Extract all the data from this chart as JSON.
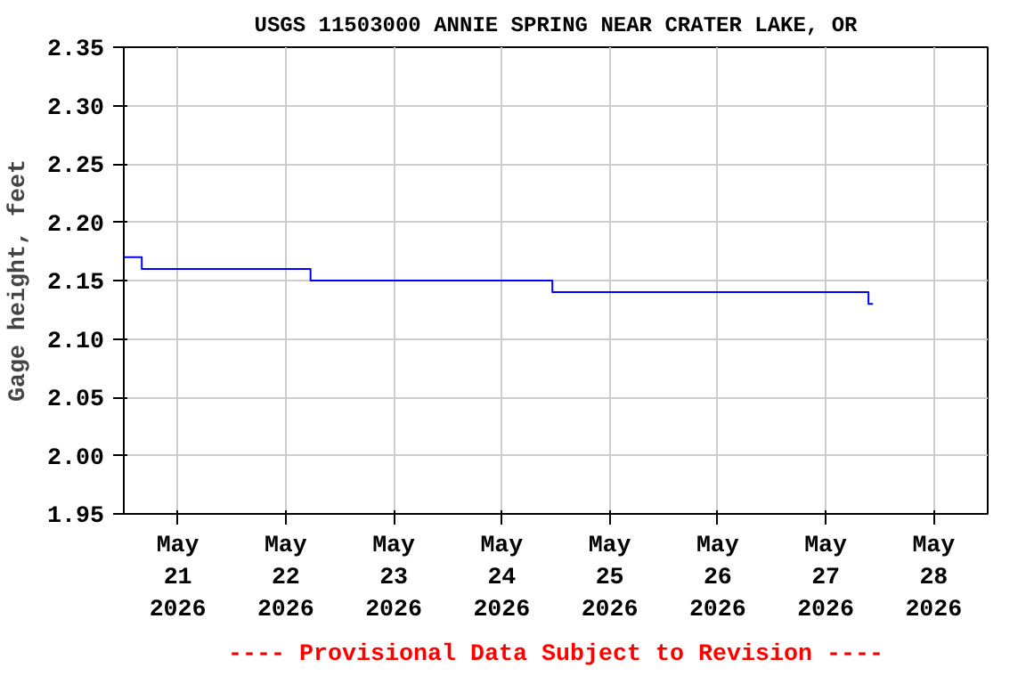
{
  "chart_data": {
    "type": "step",
    "title": "USGS 11503000 ANNIE SPRING NEAR CRATER LAKE, OR",
    "ylabel": "Gage height, feet",
    "x": [
      "2026-05-20T12:00",
      "2026-05-20T16:00",
      "2026-05-22T05:30",
      "2026-05-24T11:15",
      "2026-05-27T09:30",
      "2026-05-27T10:30"
    ],
    "series": [
      {
        "color": "#0000ff",
        "values": [
          2.17,
          2.16,
          2.15,
          2.14,
          2.13,
          2.13
        ]
      }
    ],
    "xlim": [
      "2026-05-20T12:00",
      "2026-05-28T12:00"
    ],
    "xticks": [
      {
        "value": "2026-05-21",
        "label": "May\n21\n2026"
      },
      {
        "value": "2026-05-22",
        "label": "May\n22\n2026"
      },
      {
        "value": "2026-05-23",
        "label": "May\n23\n2026"
      },
      {
        "value": "2026-05-24",
        "label": "May\n24\n2026"
      },
      {
        "value": "2026-05-25",
        "label": "May\n25\n2026"
      },
      {
        "value": "2026-05-26",
        "label": "May\n26\n2026"
      },
      {
        "value": "2026-05-27",
        "label": "May\n27\n2026"
      },
      {
        "value": "2026-05-28",
        "label": "May\n28\n2026"
      }
    ],
    "ylim": [
      1.95,
      2.35
    ],
    "yticks": [
      {
        "value": 1.95,
        "label": "1.95"
      },
      {
        "value": 2.0,
        "label": "2.00"
      },
      {
        "value": 2.05,
        "label": "2.05"
      },
      {
        "value": 2.1,
        "label": "2.10"
      },
      {
        "value": 2.15,
        "label": "2.15"
      },
      {
        "value": 2.2,
        "label": "2.20"
      },
      {
        "value": 2.25,
        "label": "2.25"
      },
      {
        "value": 2.3,
        "label": "2.30"
      },
      {
        "value": 2.35,
        "label": "2.35"
      }
    ],
    "grid": true,
    "annotations": [
      "---- Provisional Data Subject to Revision ----"
    ]
  }
}
